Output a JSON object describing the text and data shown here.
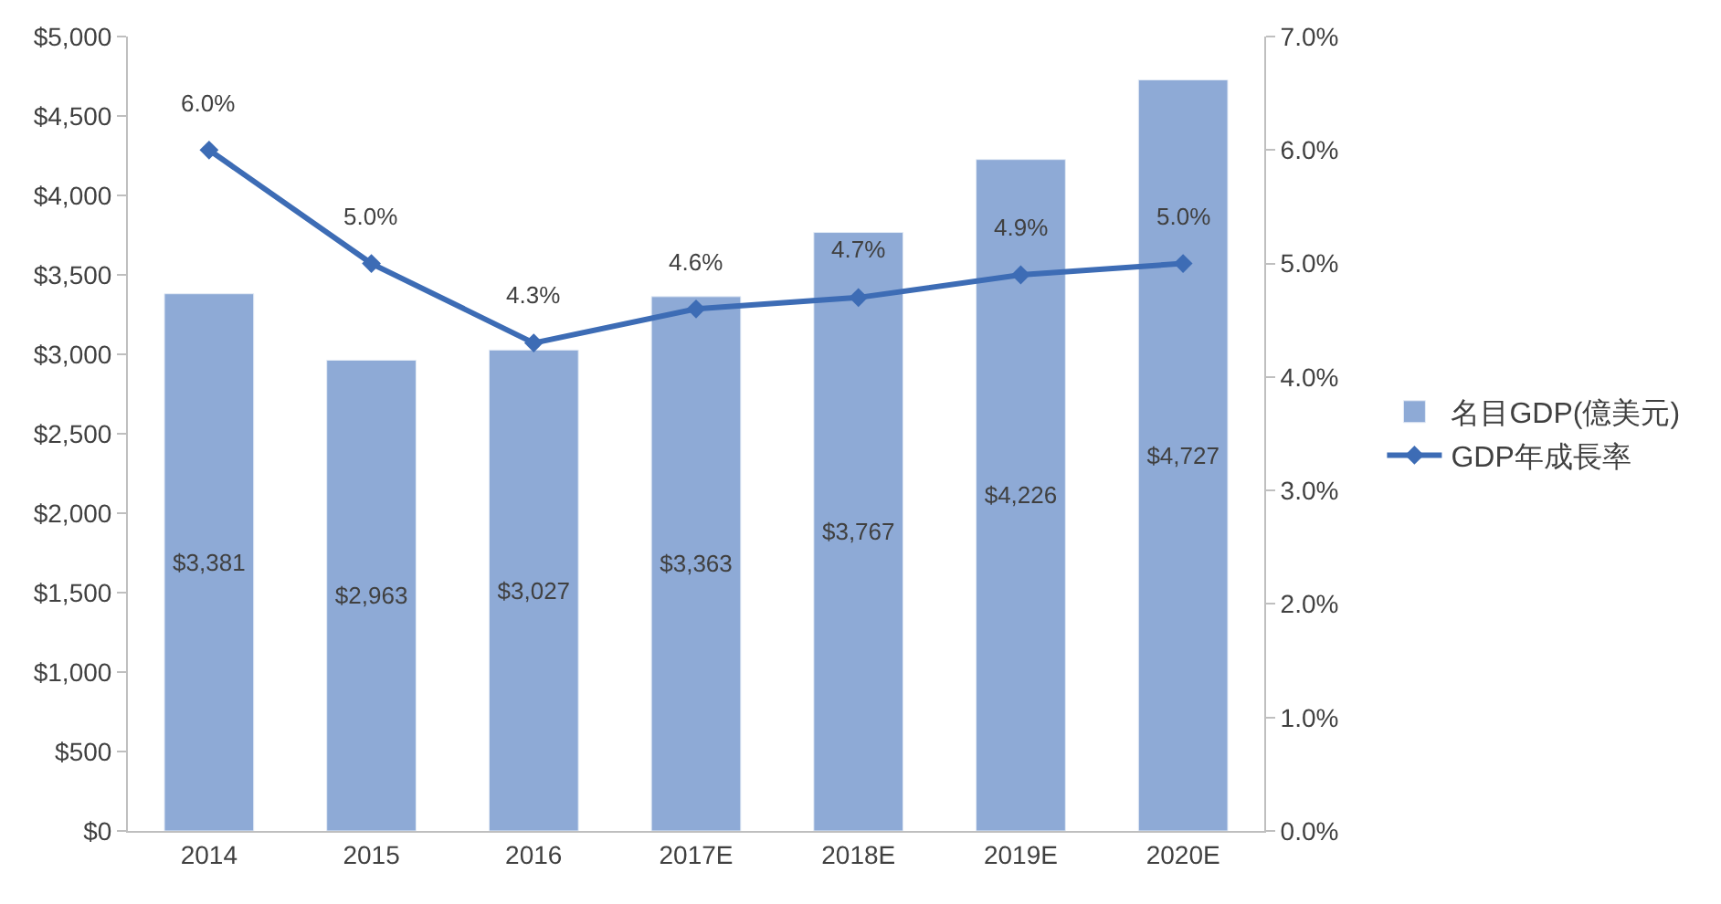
{
  "chart_data": {
    "type": "bar",
    "categories": [
      "2014",
      "2015",
      "2016",
      "2017E",
      "2018E",
      "2019E",
      "2020E"
    ],
    "series": [
      {
        "name": "名目GDP(億美元)",
        "color": "#8eaad6",
        "values": [
          3381,
          2963,
          3027,
          3363,
          3767,
          4226,
          4727
        ],
        "value_labels": [
          "$3,381",
          "$2,963",
          "$3,027",
          "$3,363",
          "$3,767",
          "$4,226",
          "$4,727"
        ]
      },
      {
        "name": "GDP年成長率",
        "type": "line",
        "axis": "y2",
        "color": "#3d6cb5",
        "values": [
          6.0,
          5.0,
          4.3,
          4.6,
          4.7,
          4.9,
          5.0
        ],
        "value_labels": [
          "6.0%",
          "5.0%",
          "4.3%",
          "4.6%",
          "4.7%",
          "4.9%",
          "5.0%"
        ]
      }
    ],
    "ylim": [
      0,
      5000
    ],
    "yticks": [
      {
        "value": 0,
        "label": "$0"
      },
      {
        "value": 500,
        "label": "$500"
      },
      {
        "value": 1000,
        "label": "$1,000"
      },
      {
        "value": 1500,
        "label": "$1,500"
      },
      {
        "value": 2000,
        "label": "$2,000"
      },
      {
        "value": 2500,
        "label": "$2,500"
      },
      {
        "value": 3000,
        "label": "$3,000"
      },
      {
        "value": 3500,
        "label": "$3,500"
      },
      {
        "value": 4000,
        "label": "$4,000"
      },
      {
        "value": 4500,
        "label": "$4,500"
      },
      {
        "value": 5000,
        "label": "$5,000"
      }
    ],
    "y2lim": [
      0,
      7
    ],
    "y2ticks": [
      {
        "value": 0,
        "label": "0.0%"
      },
      {
        "value": 1,
        "label": "1.0%"
      },
      {
        "value": 2,
        "label": "2.0%"
      },
      {
        "value": 3,
        "label": "3.0%"
      },
      {
        "value": 4,
        "label": "4.0%"
      },
      {
        "value": 5,
        "label": "5.0%"
      },
      {
        "value": 6,
        "label": "6.0%"
      },
      {
        "value": 7,
        "label": "7.0%"
      }
    ],
    "legend": "right",
    "marker": "diamond",
    "line_style": "solid"
  }
}
